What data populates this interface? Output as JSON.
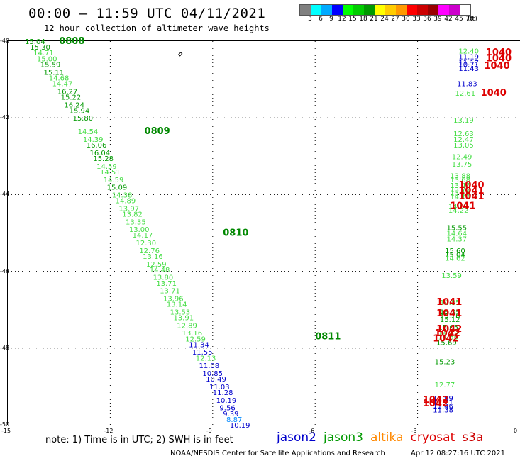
{
  "title": "00:00 – 11:59 UTC 04/11/2021",
  "subtitle": "12 hour collection of altimeter wave heights",
  "colorbar": {
    "colors": [
      "#808080",
      "#00ffff",
      "#00aaff",
      "#0000ff",
      "#00ff00",
      "#00cc00",
      "#009900",
      "#ffff00",
      "#ffcc00",
      "#ff9900",
      "#ff0000",
      "#cc0000",
      "#990000",
      "#ff00ff",
      "#cc00cc",
      "#ffffff"
    ],
    "labels": [
      "3",
      "6",
      "9",
      "12",
      "15",
      "18",
      "21",
      "24",
      "27",
      "30",
      "33",
      "36",
      "39",
      "42",
      "45",
      "70",
      "(ft)"
    ]
  },
  "x_ticks": [
    "-15",
    "-12",
    "-9",
    "-6",
    "-3",
    "0"
  ],
  "y_ticks": [
    "-40",
    "-42",
    "-44",
    "-46",
    "-48",
    "-50"
  ],
  "axis_ranges": {
    "lon": [
      -15,
      0
    ],
    "lat": [
      -50,
      -40
    ]
  },
  "grid": "dotted",
  "note": "note:  1) Time is in UTC; 2) SWH is in feet",
  "legend": [
    {
      "name": "jason2",
      "color": "#0000cc"
    },
    {
      "name": "jason3",
      "color": "#009900"
    },
    {
      "name": "altika",
      "color": "#ff8800"
    },
    {
      "name": "cryosat",
      "color": "#dd0000"
    },
    {
      "name": "s3a",
      "color": "#cc0000"
    }
  ],
  "footer_left": "NOAA/NESDIS Center for Satellite Applications and Research",
  "footer_right": "Apr 12 08:27:16 UTC 2021",
  "time_labels": [
    {
      "text": "0808",
      "lon": -13.5,
      "lat": -40.0
    },
    {
      "text": "0809",
      "lon": -11.0,
      "lat": -42.35
    },
    {
      "text": "0810",
      "lon": -8.7,
      "lat": -45.0
    },
    {
      "text": "0811",
      "lon": -6.0,
      "lat": -47.7
    }
  ],
  "pressure_labels": [
    {
      "text": "1040",
      "lon": -1.0,
      "lat": -40.3
    },
    {
      "text": "1040",
      "lon": -1.0,
      "lat": -40.45
    },
    {
      "text": "1040",
      "lon": -1.05,
      "lat": -40.65
    },
    {
      "text": "1040",
      "lon": -1.15,
      "lat": -41.35
    },
    {
      "text": "1040",
      "lon": -1.8,
      "lat": -43.75
    },
    {
      "text": "1041",
      "lon": -1.8,
      "lat": -43.9
    },
    {
      "text": "1041",
      "lon": -1.8,
      "lat": -44.05
    },
    {
      "text": "1041",
      "lon": -2.05,
      "lat": -44.3
    },
    {
      "text": "1041",
      "lon": -2.45,
      "lat": -46.8
    },
    {
      "text": "1041",
      "lon": -2.45,
      "lat": -47.1
    },
    {
      "text": "1042",
      "lon": -2.45,
      "lat": -47.5
    },
    {
      "text": "1042",
      "lon": -2.5,
      "lat": -47.62
    },
    {
      "text": "1042",
      "lon": -2.55,
      "lat": -47.75
    },
    {
      "text": "1042",
      "lon": -2.85,
      "lat": -49.35
    },
    {
      "text": "1042",
      "lon": -2.85,
      "lat": -49.45
    }
  ],
  "track1": [
    {
      "v": "15.04",
      "lon": -14.5,
      "lat": -40.0,
      "c": "#009900"
    },
    {
      "v": "15.30",
      "lon": -14.35,
      "lat": -40.15,
      "c": "#009900"
    },
    {
      "v": "14.71",
      "lon": -14.25,
      "lat": -40.3,
      "c": "#44dd44"
    },
    {
      "v": "15.00",
      "lon": -14.15,
      "lat": -40.45,
      "c": "#44dd44"
    },
    {
      "v": "15.59",
      "lon": -14.05,
      "lat": -40.6,
      "c": "#009900"
    },
    {
      "v": "15.11",
      "lon": -13.95,
      "lat": -40.8,
      "c": "#009900"
    },
    {
      "v": "14.68",
      "lon": -13.8,
      "lat": -40.95,
      "c": "#44dd44"
    },
    {
      "v": "14.47",
      "lon": -13.7,
      "lat": -41.1,
      "c": "#44dd44"
    },
    {
      "v": "16.27",
      "lon": -13.55,
      "lat": -41.3,
      "c": "#009900"
    },
    {
      "v": "15.22",
      "lon": -13.45,
      "lat": -41.45,
      "c": "#009900"
    },
    {
      "v": "16.24",
      "lon": -13.35,
      "lat": -41.65,
      "c": "#009900"
    },
    {
      "v": "15.94",
      "lon": -13.2,
      "lat": -41.8,
      "c": "#009900"
    },
    {
      "v": "15.80",
      "lon": -13.1,
      "lat": -42.0,
      "c": "#009900"
    },
    {
      "v": "14.54",
      "lon": -12.95,
      "lat": -42.35,
      "c": "#44dd44"
    },
    {
      "v": "14.39",
      "lon": -12.8,
      "lat": -42.55,
      "c": "#44dd44"
    },
    {
      "v": "16.06",
      "lon": -12.7,
      "lat": -42.7,
      "c": "#009900"
    },
    {
      "v": "16.04",
      "lon": -12.6,
      "lat": -42.9,
      "c": "#009900"
    },
    {
      "v": "15.28",
      "lon": -12.5,
      "lat": -43.05,
      "c": "#009900"
    },
    {
      "v": "14.59",
      "lon": -12.4,
      "lat": -43.25,
      "c": "#44dd44"
    },
    {
      "v": "14.51",
      "lon": -12.3,
      "lat": -43.4,
      "c": "#44dd44"
    },
    {
      "v": "14.59",
      "lon": -12.2,
      "lat": -43.6,
      "c": "#44dd44"
    },
    {
      "v": "15.09",
      "lon": -12.1,
      "lat": -43.8,
      "c": "#009900"
    },
    {
      "v": "14.38",
      "lon": -11.95,
      "lat": -44.0,
      "c": "#44dd44"
    },
    {
      "v": "14.89",
      "lon": -11.85,
      "lat": -44.15,
      "c": "#44dd44"
    },
    {
      "v": "13.97",
      "lon": -11.75,
      "lat": -44.35,
      "c": "#44dd44"
    },
    {
      "v": "13.82",
      "lon": -11.65,
      "lat": -44.5,
      "c": "#44dd44"
    },
    {
      "v": "13.35",
      "lon": -11.55,
      "lat": -44.7,
      "c": "#44dd44"
    },
    {
      "v": "13.00",
      "lon": -11.45,
      "lat": -44.9,
      "c": "#44dd44"
    },
    {
      "v": "14.17",
      "lon": -11.35,
      "lat": -45.05,
      "c": "#44dd44"
    },
    {
      "v": "12.30",
      "lon": -11.25,
      "lat": -45.25,
      "c": "#44dd44"
    },
    {
      "v": "12.76",
      "lon": -11.15,
      "lat": -45.45,
      "c": "#44dd44"
    },
    {
      "v": "13.16",
      "lon": -11.05,
      "lat": -45.6,
      "c": "#44dd44"
    },
    {
      "v": "12.59",
      "lon": -10.95,
      "lat": -45.8,
      "c": "#44dd44"
    },
    {
      "v": "14.48",
      "lon": -10.85,
      "lat": -45.95,
      "c": "#44dd44"
    },
    {
      "v": "13.80",
      "lon": -10.75,
      "lat": -46.15,
      "c": "#44dd44"
    },
    {
      "v": "13.71",
      "lon": -10.65,
      "lat": -46.3,
      "c": "#44dd44"
    },
    {
      "v": "13.71",
      "lon": -10.55,
      "lat": -46.5,
      "c": "#44dd44"
    },
    {
      "v": "13.96",
      "lon": -10.45,
      "lat": -46.7,
      "c": "#44dd44"
    },
    {
      "v": "13.14",
      "lon": -10.35,
      "lat": -46.85,
      "c": "#44dd44"
    },
    {
      "v": "13.53",
      "lon": -10.25,
      "lat": -47.05,
      "c": "#44dd44"
    },
    {
      "v": "13.91",
      "lon": -10.15,
      "lat": -47.2,
      "c": "#44dd44"
    },
    {
      "v": "12.89",
      "lon": -10.05,
      "lat": -47.4,
      "c": "#44dd44"
    },
    {
      "v": "13.16",
      "lon": -9.9,
      "lat": -47.6,
      "c": "#44dd44"
    },
    {
      "v": "12.59",
      "lon": -9.8,
      "lat": -47.75,
      "c": "#44dd44"
    },
    {
      "v": "11.34",
      "lon": -9.7,
      "lat": -47.9,
      "c": "#0000cc"
    },
    {
      "v": "11.55",
      "lon": -9.6,
      "lat": -48.1,
      "c": "#0000cc"
    },
    {
      "v": "12.13",
      "lon": -9.5,
      "lat": -48.25,
      "c": "#44dd44"
    },
    {
      "v": "11.08",
      "lon": -9.4,
      "lat": -48.45,
      "c": "#0000cc"
    },
    {
      "v": "10.85",
      "lon": -9.3,
      "lat": -48.65,
      "c": "#0000cc"
    },
    {
      "v": "10.49",
      "lon": -9.2,
      "lat": -48.8,
      "c": "#0000cc"
    },
    {
      "v": "11.03",
      "lon": -9.1,
      "lat": -49.0,
      "c": "#0000cc"
    },
    {
      "v": "11.28",
      "lon": -9.0,
      "lat": -49.15,
      "c": "#0000cc"
    },
    {
      "v": "10.19",
      "lon": -8.9,
      "lat": -49.35,
      "c": "#0000cc"
    },
    {
      "v": "9.56",
      "lon": -8.8,
      "lat": -49.55,
      "c": "#0000cc"
    },
    {
      "v": "9.39",
      "lon": -8.7,
      "lat": -49.7,
      "c": "#0000cc"
    },
    {
      "v": "8.87",
      "lon": -8.6,
      "lat": -49.85,
      "c": "#0088ff"
    },
    {
      "v": "10.19",
      "lon": -8.5,
      "lat": -50.0,
      "c": "#0000cc"
    }
  ],
  "track2": [
    {
      "v": "12.40",
      "lon": -1.8,
      "lat": -40.25,
      "c": "#44dd44"
    },
    {
      "v": "11.19",
      "lon": -1.8,
      "lat": -40.4,
      "c": "#0000cc"
    },
    {
      "v": "11.17",
      "lon": -1.8,
      "lat": -40.55,
      "c": "#0000cc"
    },
    {
      "v": "10.71",
      "lon": -1.8,
      "lat": -40.6,
      "c": "#0000cc"
    },
    {
      "v": "11.43",
      "lon": -1.8,
      "lat": -40.7,
      "c": "#0000cc"
    },
    {
      "v": "11.83",
      "lon": -1.85,
      "lat": -41.1,
      "c": "#0000cc"
    },
    {
      "v": "12.61",
      "lon": -1.9,
      "lat": -41.35,
      "c": "#44dd44"
    },
    {
      "v": "13.19",
      "lon": -1.95,
      "lat": -42.05,
      "c": "#44dd44"
    },
    {
      "v": "12.63",
      "lon": -1.95,
      "lat": -42.4,
      "c": "#44dd44"
    },
    {
      "v": "12.47",
      "lon": -1.95,
      "lat": -42.55,
      "c": "#44dd44"
    },
    {
      "v": "13.05",
      "lon": -1.95,
      "lat": -42.7,
      "c": "#44dd44"
    },
    {
      "v": "12.49",
      "lon": -2.0,
      "lat": -43.0,
      "c": "#44dd44"
    },
    {
      "v": "13.75",
      "lon": -2.0,
      "lat": -43.2,
      "c": "#44dd44"
    },
    {
      "v": "13.88",
      "lon": -2.05,
      "lat": -43.5,
      "c": "#44dd44"
    },
    {
      "v": "13.68",
      "lon": -2.05,
      "lat": -43.6,
      "c": "#44dd44"
    },
    {
      "v": "13.46",
      "lon": -2.05,
      "lat": -43.75,
      "c": "#44dd44"
    },
    {
      "v": "13.72",
      "lon": -2.05,
      "lat": -43.85,
      "c": "#44dd44"
    },
    {
      "v": "13.16",
      "lon": -2.05,
      "lat": -43.95,
      "c": "#44dd44"
    },
    {
      "v": "14.11",
      "lon": -2.05,
      "lat": -44.05,
      "c": "#44dd44"
    },
    {
      "v": "14.69",
      "lon": -2.1,
      "lat": -44.3,
      "c": "#44dd44"
    },
    {
      "v": "14.22",
      "lon": -2.1,
      "lat": -44.4,
      "c": "#44dd44"
    },
    {
      "v": "15.55",
      "lon": -2.15,
      "lat": -44.85,
      "c": "#009900"
    },
    {
      "v": "14.64",
      "lon": -2.15,
      "lat": -45.0,
      "c": "#44dd44"
    },
    {
      "v": "14.37",
      "lon": -2.15,
      "lat": -45.15,
      "c": "#44dd44"
    },
    {
      "v": "15.60",
      "lon": -2.2,
      "lat": -45.45,
      "c": "#009900"
    },
    {
      "v": "15.04",
      "lon": -2.2,
      "lat": -45.55,
      "c": "#009900"
    },
    {
      "v": "14.62",
      "lon": -2.2,
      "lat": -45.65,
      "c": "#44dd44"
    },
    {
      "v": "13.59",
      "lon": -2.3,
      "lat": -46.1,
      "c": "#44dd44"
    },
    {
      "v": "14.85",
      "lon": -2.35,
      "lat": -46.8,
      "c": "#44dd44"
    },
    {
      "v": "15.35",
      "lon": -2.35,
      "lat": -47.05,
      "c": "#009900"
    },
    {
      "v": "15.16",
      "lon": -2.35,
      "lat": -47.15,
      "c": "#009900"
    },
    {
      "v": "15.12",
      "lon": -2.35,
      "lat": -47.25,
      "c": "#009900"
    },
    {
      "v": "15.05",
      "lon": -2.4,
      "lat": -47.45,
      "c": "#009900"
    },
    {
      "v": "14.42",
      "lon": -2.4,
      "lat": -47.6,
      "c": "#44dd44"
    },
    {
      "v": "14.86",
      "lon": -2.4,
      "lat": -47.7,
      "c": "#44dd44"
    },
    {
      "v": "15.69",
      "lon": -2.45,
      "lat": -47.85,
      "c": "#009900"
    },
    {
      "v": "15.23",
      "lon": -2.5,
      "lat": -48.35,
      "c": "#009900"
    },
    {
      "v": "12.77",
      "lon": -2.5,
      "lat": -48.95,
      "c": "#44dd44"
    },
    {
      "v": "11.99",
      "lon": -2.55,
      "lat": -49.3,
      "c": "#0000cc"
    },
    {
      "v": "11.71",
      "lon": -2.55,
      "lat": -49.4,
      "c": "#0000cc"
    },
    {
      "v": "11.46",
      "lon": -2.55,
      "lat": -49.5,
      "c": "#0000cc"
    },
    {
      "v": "11.38",
      "lon": -2.55,
      "lat": -49.6,
      "c": "#0000cc"
    }
  ]
}
